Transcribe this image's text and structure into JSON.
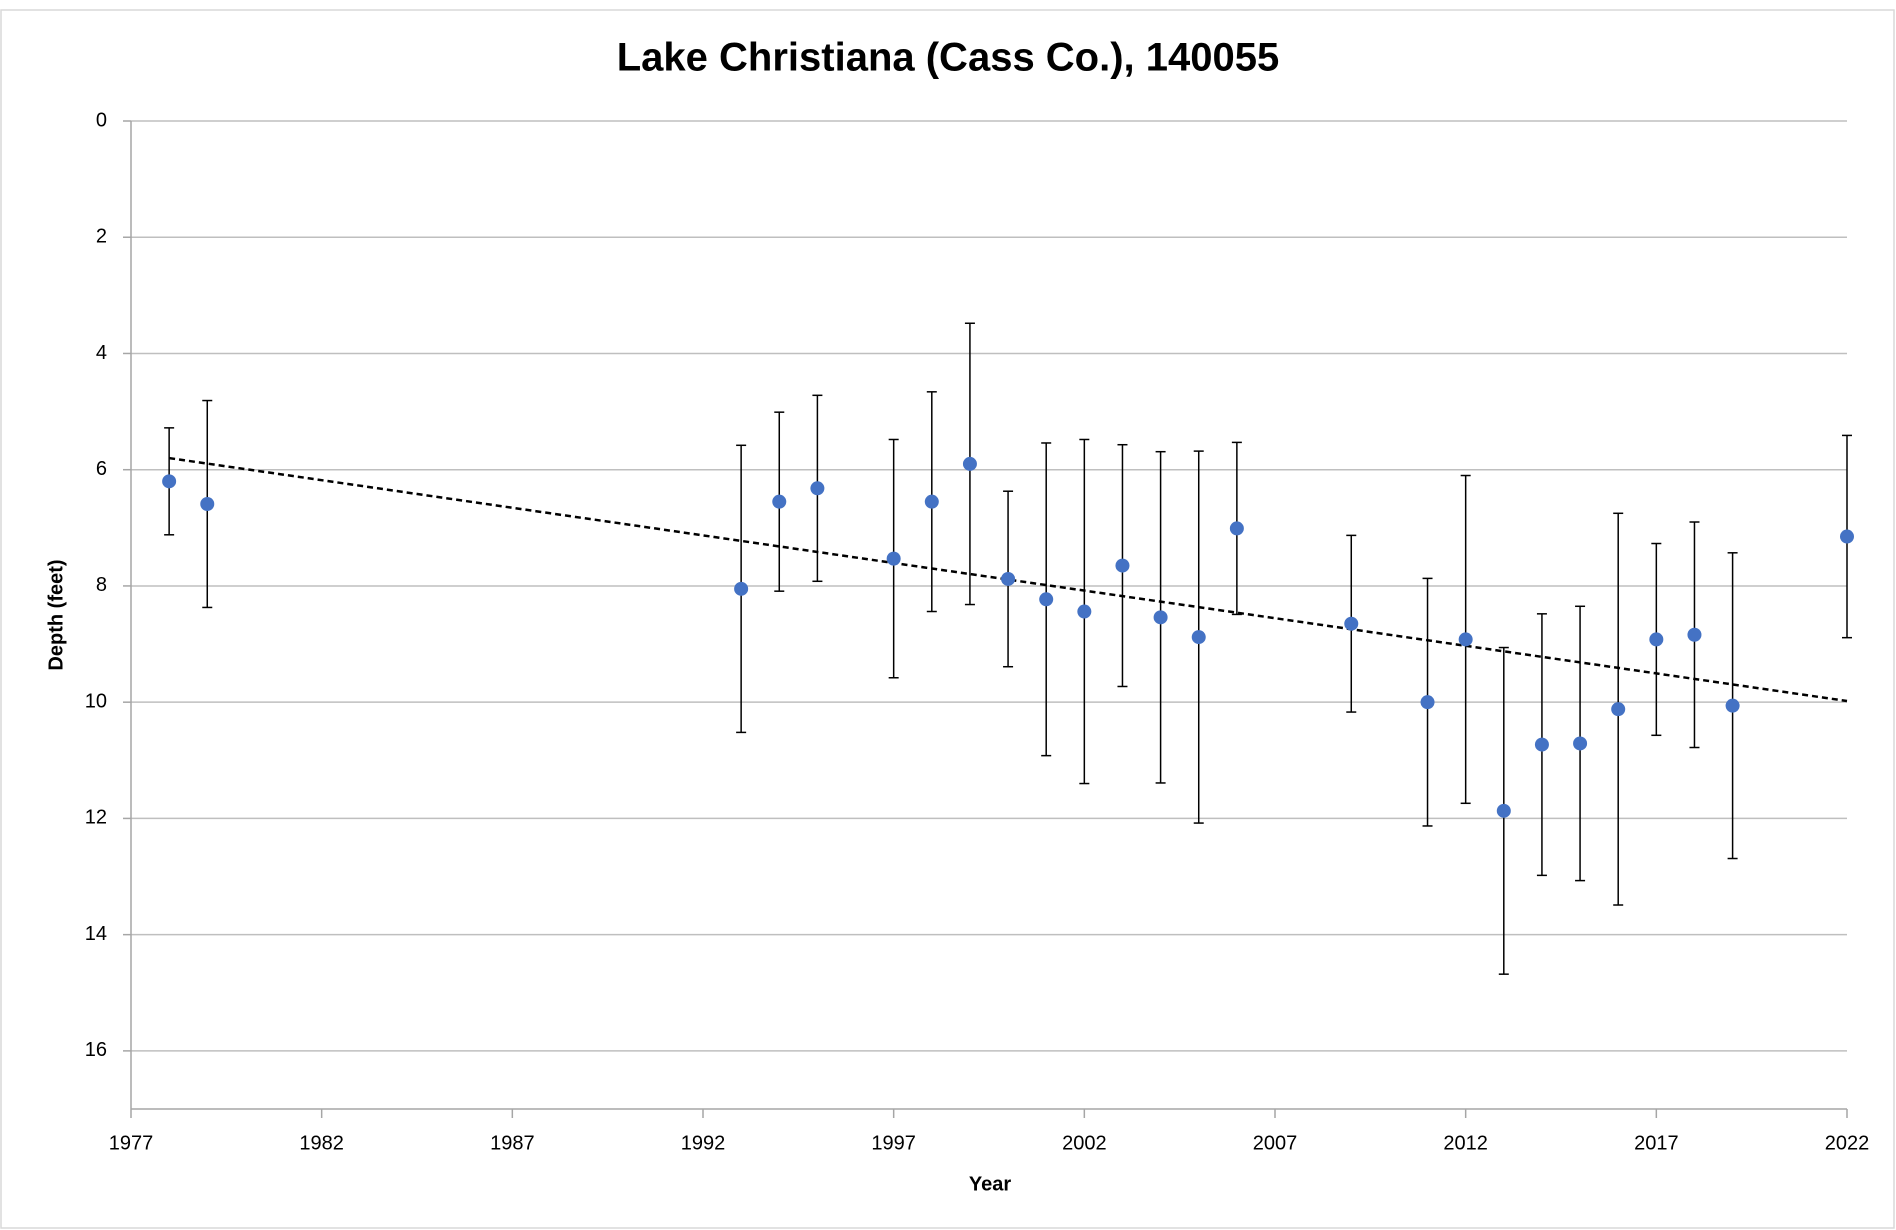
{
  "chart_data": {
    "type": "scatter",
    "title": "Lake Christiana (Cass Co.), 140055",
    "x_label": "Year",
    "y_label": "Depth (feet)",
    "xlim": [
      1977,
      2022
    ],
    "xticks": [
      1977,
      1982,
      1987,
      1992,
      1997,
      2002,
      2007,
      2012,
      2017,
      2022
    ],
    "ylim": [
      0,
      17
    ],
    "yticks": [
      0,
      2,
      4,
      6,
      8,
      10,
      12,
      14,
      16
    ],
    "y_inverted": true,
    "grid": true,
    "series": [
      {
        "color": "#4472c4",
        "x": [
          1978,
          1979,
          1993,
          1994,
          1995,
          1997,
          1998,
          1999,
          2000,
          2001,
          2002,
          2003,
          2004,
          2005,
          2006,
          2009,
          2011,
          2012,
          2013,
          2014,
          2015,
          2016,
          2017,
          2018,
          2019,
          2022
        ],
        "values": [
          6.2,
          6.59,
          8.05,
          6.55,
          6.32,
          7.53,
          6.55,
          5.9,
          7.88,
          8.23,
          8.44,
          7.65,
          8.54,
          8.88,
          7.01,
          8.65,
          10.0,
          8.92,
          11.87,
          10.73,
          10.71,
          10.12,
          8.92,
          8.84,
          10.06,
          7.15
        ],
        "errors": [
          0.92,
          1.78,
          2.47,
          1.54,
          1.6,
          2.05,
          1.89,
          2.42,
          1.51,
          2.69,
          2.96,
          2.08,
          2.85,
          3.2,
          1.48,
          1.52,
          2.13,
          2.82,
          2.81,
          2.25,
          2.36,
          3.37,
          1.65,
          1.94,
          2.63,
          1.74
        ]
      }
    ],
    "trendline": {
      "x": [
        1978,
        2022
      ],
      "values": [
        5.8,
        9.98
      ],
      "color": "#000000"
    }
  }
}
